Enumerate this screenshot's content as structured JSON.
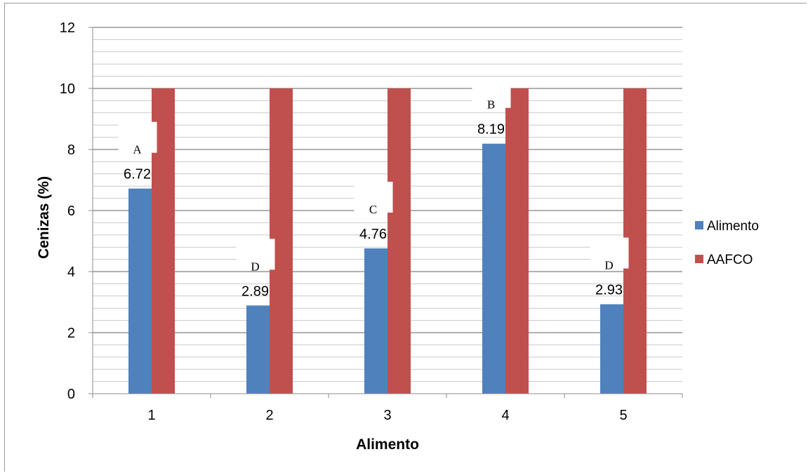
{
  "chart_data": {
    "type": "bar",
    "title": "",
    "xlabel": "Alimento",
    "ylabel": "Cenizas (%)",
    "ylim": [
      0,
      12
    ],
    "yticks": [
      0,
      2,
      4,
      6,
      8,
      10,
      12
    ],
    "minor_gridlines": true,
    "legend_position": "right",
    "categories": [
      "1",
      "2",
      "3",
      "4",
      "5"
    ],
    "series": [
      {
        "name": "Alimento",
        "color": "#4f81bd",
        "values": [
          6.72,
          2.89,
          4.76,
          8.19,
          2.93
        ],
        "data_labels": [
          "6.72",
          "2.89",
          "4.76",
          "8.19",
          "2.93"
        ],
        "letter_labels": [
          "A",
          "D",
          "C",
          "B",
          "D"
        ]
      },
      {
        "name": "AAFCO",
        "color": "#c0504d",
        "values": [
          10,
          10,
          10,
          10,
          10
        ]
      }
    ]
  }
}
